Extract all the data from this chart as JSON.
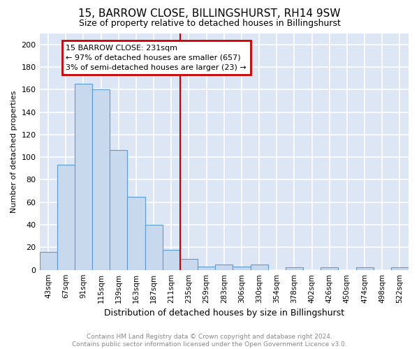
{
  "title": "15, BARROW CLOSE, BILLINGSHURST, RH14 9SW",
  "subtitle": "Size of property relative to detached houses in Billingshurst",
  "xlabel": "Distribution of detached houses by size in Billingshurst",
  "ylabel": "Number of detached properties",
  "categories": [
    "43sqm",
    "67sqm",
    "91sqm",
    "115sqm",
    "139sqm",
    "163sqm",
    "187sqm",
    "211sqm",
    "235sqm",
    "259sqm",
    "283sqm",
    "306sqm",
    "330sqm",
    "354sqm",
    "378sqm",
    "402sqm",
    "426sqm",
    "450sqm",
    "474sqm",
    "498sqm",
    "522sqm"
  ],
  "values": [
    16,
    93,
    165,
    160,
    106,
    65,
    40,
    18,
    10,
    3,
    5,
    3,
    5,
    0,
    2,
    0,
    2,
    0,
    2,
    0,
    2
  ],
  "bar_color": "#c9d9ed",
  "bar_edge_color": "#5b9bd5",
  "ref_line_label": "15 BARROW CLOSE: 231sqm",
  "annotation_line1": "← 97% of detached houses are smaller (657)",
  "annotation_line2": "3% of semi-detached houses are larger (23) →",
  "annotation_box_color": "#cc0000",
  "background_color": "#dce6f5",
  "grid_color": "#ffffff",
  "footer": "Contains HM Land Registry data © Crown copyright and database right 2024.\nContains public sector information licensed under the Open Government Licence v3.0.",
  "ylim": [
    0,
    210
  ],
  "yticks": [
    0,
    20,
    40,
    60,
    80,
    100,
    120,
    140,
    160,
    180,
    200
  ],
  "title_fontsize": 11,
  "subtitle_fontsize": 9,
  "xlabel_fontsize": 9,
  "ylabel_fontsize": 8,
  "tick_fontsize": 8,
  "xtick_fontsize": 7.5,
  "footer_fontsize": 6.5,
  "annot_fontsize": 8
}
